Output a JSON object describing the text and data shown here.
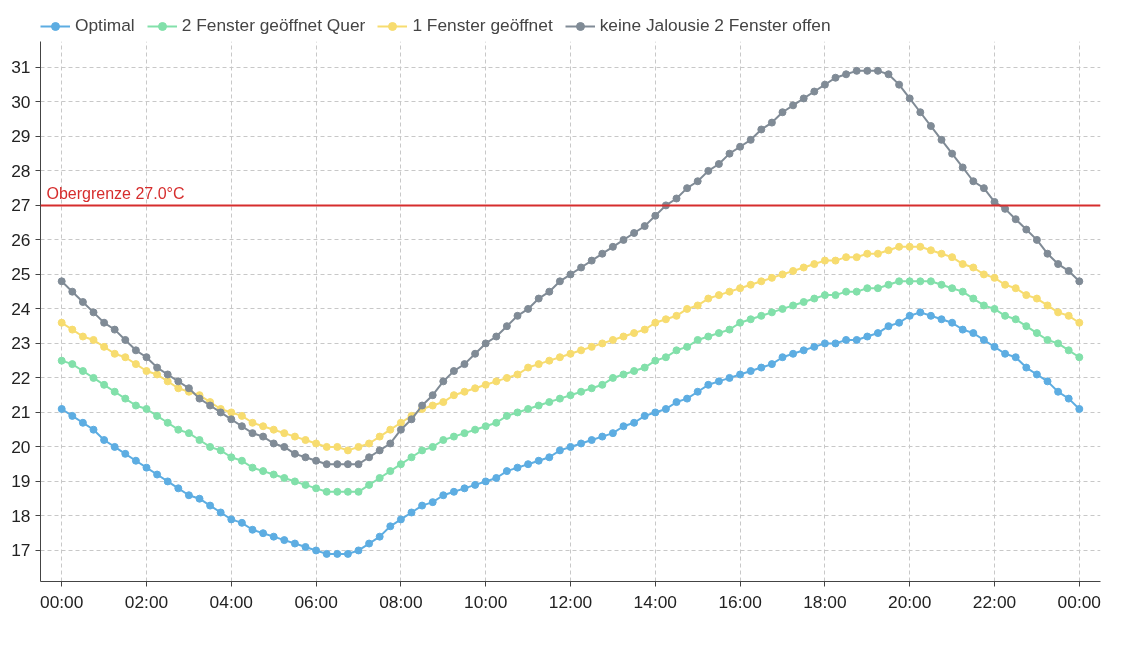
{
  "chart_data": {
    "type": "line",
    "marker": "circle",
    "line_style": "solid",
    "grid": true,
    "legend": "top",
    "x": [
      0,
      0.25,
      0.5,
      0.75,
      1,
      1.25,
      1.5,
      1.75,
      2,
      2.25,
      2.5,
      2.75,
      3,
      3.25,
      3.5,
      3.75,
      4,
      4.25,
      4.5,
      4.75,
      5,
      5.25,
      5.5,
      5.75,
      6,
      6.25,
      6.5,
      6.75,
      7,
      7.25,
      7.5,
      7.75,
      8,
      8.25,
      8.5,
      8.75,
      9,
      9.25,
      9.5,
      9.75,
      10,
      10.25,
      10.5,
      10.75,
      11,
      11.25,
      11.5,
      11.75,
      12,
      12.25,
      12.5,
      12.75,
      13,
      13.25,
      13.5,
      13.75,
      14,
      14.25,
      14.5,
      14.75,
      15,
      15.25,
      15.5,
      15.75,
      16,
      16.25,
      16.5,
      16.75,
      17,
      17.25,
      17.5,
      17.75,
      18,
      18.25,
      18.5,
      18.75,
      19,
      19.25,
      19.5,
      19.75,
      20,
      20.25,
      20.5,
      20.75,
      21,
      21.25,
      21.5,
      21.75,
      22,
      22.25,
      22.5,
      22.75,
      23,
      23.25,
      23.5,
      23.75,
      24
    ],
    "xlim": [
      -0.5,
      24.5
    ],
    "xticks": [
      {
        "value": 0,
        "label": "00:00"
      },
      {
        "value": 2,
        "label": "02:00"
      },
      {
        "value": 4,
        "label": "04:00"
      },
      {
        "value": 6,
        "label": "06:00"
      },
      {
        "value": 8,
        "label": "08:00"
      },
      {
        "value": 10,
        "label": "10:00"
      },
      {
        "value": 12,
        "label": "12:00"
      },
      {
        "value": 14,
        "label": "14:00"
      },
      {
        "value": 16,
        "label": "16:00"
      },
      {
        "value": 18,
        "label": "18:00"
      },
      {
        "value": 20,
        "label": "20:00"
      },
      {
        "value": 22,
        "label": "22:00"
      },
      {
        "value": 24,
        "label": "00:00"
      }
    ],
    "ylim": [
      16.1,
      31.75
    ],
    "yticks": [
      17,
      18,
      19,
      20,
      21,
      22,
      23,
      24,
      25,
      26,
      27,
      28,
      29,
      30,
      31
    ],
    "ref_lines": [
      {
        "axis": "y",
        "value": 27,
        "label": "Obergrenze 27.0°C",
        "color": "#d62d2d"
      }
    ],
    "series": [
      {
        "name": "Optimal",
        "color": "#5dade2",
        "values": [
          21.1,
          20.9,
          20.7,
          20.5,
          20.2,
          20.0,
          19.8,
          19.6,
          19.4,
          19.2,
          19.0,
          18.8,
          18.6,
          18.5,
          18.3,
          18.1,
          17.9,
          17.8,
          17.6,
          17.5,
          17.4,
          17.3,
          17.2,
          17.1,
          17.0,
          16.9,
          16.9,
          16.9,
          17.0,
          17.2,
          17.4,
          17.7,
          17.9,
          18.1,
          18.3,
          18.4,
          18.6,
          18.7,
          18.8,
          18.9,
          19.0,
          19.1,
          19.3,
          19.4,
          19.5,
          19.6,
          19.7,
          19.9,
          20.0,
          20.1,
          20.2,
          20.3,
          20.4,
          20.6,
          20.7,
          20.9,
          21.0,
          21.1,
          21.3,
          21.4,
          21.6,
          21.8,
          21.9,
          22.0,
          22.1,
          22.2,
          22.3,
          22.4,
          22.6,
          22.7,
          22.8,
          22.9,
          23.0,
          23.0,
          23.1,
          23.1,
          23.2,
          23.3,
          23.5,
          23.6,
          23.8,
          23.9,
          23.8,
          23.7,
          23.6,
          23.4,
          23.3,
          23.1,
          22.9,
          22.7,
          22.6,
          22.3,
          22.1,
          21.9,
          21.6,
          21.4,
          21.1
        ]
      },
      {
        "name": "2 Fenster geöffnet Quer",
        "color": "#82e0aa",
        "values": [
          22.5,
          22.4,
          22.2,
          22.0,
          21.8,
          21.6,
          21.4,
          21.2,
          21.1,
          20.9,
          20.7,
          20.5,
          20.4,
          20.2,
          20.0,
          19.9,
          19.7,
          19.6,
          19.4,
          19.3,
          19.2,
          19.1,
          19.0,
          18.9,
          18.8,
          18.7,
          18.7,
          18.7,
          18.7,
          18.9,
          19.1,
          19.3,
          19.5,
          19.7,
          19.9,
          20.0,
          20.2,
          20.3,
          20.4,
          20.5,
          20.6,
          20.7,
          20.9,
          21.0,
          21.1,
          21.2,
          21.3,
          21.4,
          21.5,
          21.6,
          21.7,
          21.8,
          22.0,
          22.1,
          22.2,
          22.3,
          22.5,
          22.6,
          22.8,
          22.9,
          23.1,
          23.2,
          23.3,
          23.4,
          23.6,
          23.7,
          23.8,
          23.9,
          24.0,
          24.1,
          24.2,
          24.3,
          24.4,
          24.4,
          24.5,
          24.5,
          24.6,
          24.6,
          24.7,
          24.8,
          24.8,
          24.8,
          24.8,
          24.7,
          24.6,
          24.5,
          24.3,
          24.1,
          24.0,
          23.8,
          23.7,
          23.5,
          23.3,
          23.1,
          23.0,
          22.8,
          22.6
        ]
      },
      {
        "name": "1 Fenster geöffnet",
        "color": "#f7dc6f",
        "values": [
          23.6,
          23.4,
          23.2,
          23.1,
          22.9,
          22.7,
          22.6,
          22.4,
          22.2,
          22.1,
          21.9,
          21.7,
          21.6,
          21.5,
          21.3,
          21.1,
          21.0,
          20.9,
          20.7,
          20.6,
          20.5,
          20.4,
          20.3,
          20.2,
          20.1,
          20.0,
          20.0,
          19.9,
          20.0,
          20.1,
          20.3,
          20.5,
          20.7,
          20.9,
          21.1,
          21.2,
          21.3,
          21.5,
          21.6,
          21.7,
          21.8,
          21.9,
          22.0,
          22.1,
          22.3,
          22.4,
          22.5,
          22.6,
          22.7,
          22.8,
          22.9,
          23.0,
          23.1,
          23.2,
          23.3,
          23.4,
          23.6,
          23.7,
          23.8,
          24.0,
          24.1,
          24.3,
          24.4,
          24.5,
          24.6,
          24.7,
          24.8,
          24.9,
          25.0,
          25.1,
          25.2,
          25.3,
          25.4,
          25.4,
          25.5,
          25.5,
          25.6,
          25.6,
          25.7,
          25.8,
          25.8,
          25.8,
          25.7,
          25.6,
          25.5,
          25.3,
          25.2,
          25.0,
          24.9,
          24.7,
          24.6,
          24.4,
          24.3,
          24.1,
          23.9,
          23.8,
          23.6
        ]
      },
      {
        "name": "keine Jalousie 2 Fenster offen",
        "color": "#808b96",
        "values": [
          24.8,
          24.5,
          24.2,
          23.9,
          23.6,
          23.4,
          23.1,
          22.8,
          22.6,
          22.3,
          22.1,
          21.9,
          21.7,
          21.4,
          21.2,
          21.0,
          20.8,
          20.6,
          20.4,
          20.3,
          20.1,
          20.0,
          19.8,
          19.7,
          19.6,
          19.5,
          19.5,
          19.5,
          19.5,
          19.7,
          19.9,
          20.1,
          20.5,
          20.8,
          21.2,
          21.5,
          21.9,
          22.2,
          22.4,
          22.7,
          23.0,
          23.2,
          23.5,
          23.8,
          24.0,
          24.3,
          24.5,
          24.8,
          25.0,
          25.2,
          25.4,
          25.6,
          25.8,
          26.0,
          26.2,
          26.4,
          26.7,
          27.0,
          27.2,
          27.5,
          27.7,
          28.0,
          28.2,
          28.5,
          28.7,
          28.9,
          29.2,
          29.4,
          29.7,
          29.9,
          30.1,
          30.3,
          30.5,
          30.7,
          30.8,
          30.9,
          30.9,
          30.9,
          30.8,
          30.5,
          30.1,
          29.7,
          29.3,
          28.9,
          28.5,
          28.1,
          27.7,
          27.5,
          27.1,
          26.9,
          26.6,
          26.3,
          26.0,
          25.6,
          25.3,
          25.1,
          24.8
        ]
      }
    ]
  }
}
